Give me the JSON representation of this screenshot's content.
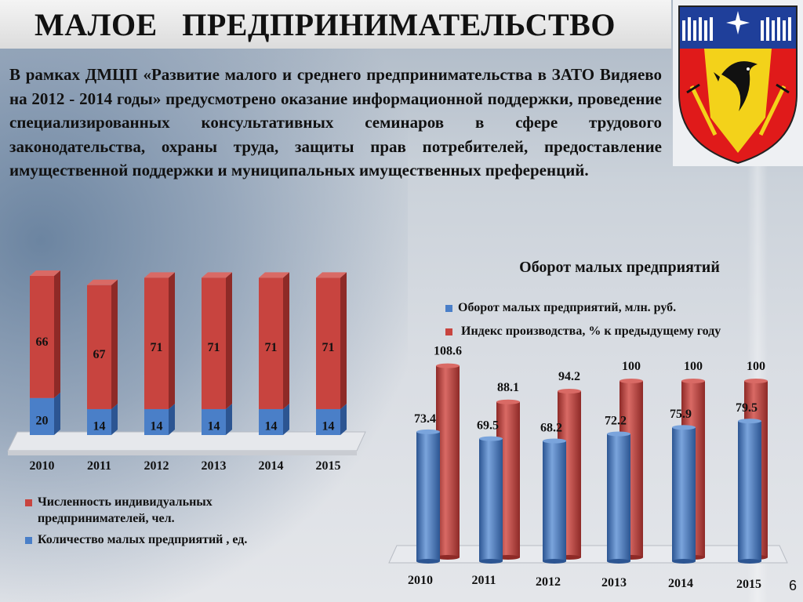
{
  "slide": {
    "title": "МАЛОЕ   ПРЕДПРИНИМАТЕЛЬСТВО",
    "body": "В рамках ДМЦП «Развитие малого и среднего предпринимательства в ЗАТО Видяево на 2012 - 2014 годы» предусмотрено оказание информационной поддержки, проведение специализированных консультативных семинаров в сфере трудового законодательства, охраны труда, защиты прав потребителей, предоставление имущественной поддержки и муниципальных имущественных преференций.",
    "page_number": "6",
    "emblem_icon": "vidyaevo-coat-of-arms-icon"
  },
  "colors": {
    "red": "#c8443f",
    "red_dark": "#8e2a27",
    "red_top": "#d96a65",
    "blue": "#4a7fc8",
    "blue_dark": "#2c5592",
    "blue_top": "#7aa4dc"
  },
  "chart_data": [
    {
      "type": "bar",
      "stacked": true,
      "title": "",
      "categories": [
        "2010",
        "2011",
        "2012",
        "2013",
        "2014",
        "2015"
      ],
      "series": [
        {
          "name": "Количество малых предприятий , ед.",
          "values": [
            20,
            14,
            14,
            14,
            14,
            14
          ],
          "color": "#4a7fc8"
        },
        {
          "name": "Численность индивидуальных предпринимателей, чел.",
          "values": [
            66,
            67,
            71,
            71,
            71,
            71
          ],
          "color": "#c8443f"
        }
      ],
      "ylim": [
        0,
        86
      ],
      "legend": "bottom"
    },
    {
      "type": "bar",
      "title": "Оборот малых предприятий",
      "categories": [
        "2010",
        "2011",
        "2012",
        "2013",
        "2014",
        "2015"
      ],
      "series": [
        {
          "name": "Оборот малых предприятий, млн. руб.",
          "values": [
            73.4,
            69.5,
            68.2,
            72.2,
            75.9,
            79.5
          ],
          "color": "#4a7fc8"
        },
        {
          "name": "Индекс производства, % к предыдущему году",
          "values": [
            108.6,
            88.1,
            94.2,
            100,
            100,
            100
          ],
          "color": "#c8443f"
        }
      ],
      "ylim": [
        0,
        110
      ],
      "legend": "top"
    }
  ]
}
